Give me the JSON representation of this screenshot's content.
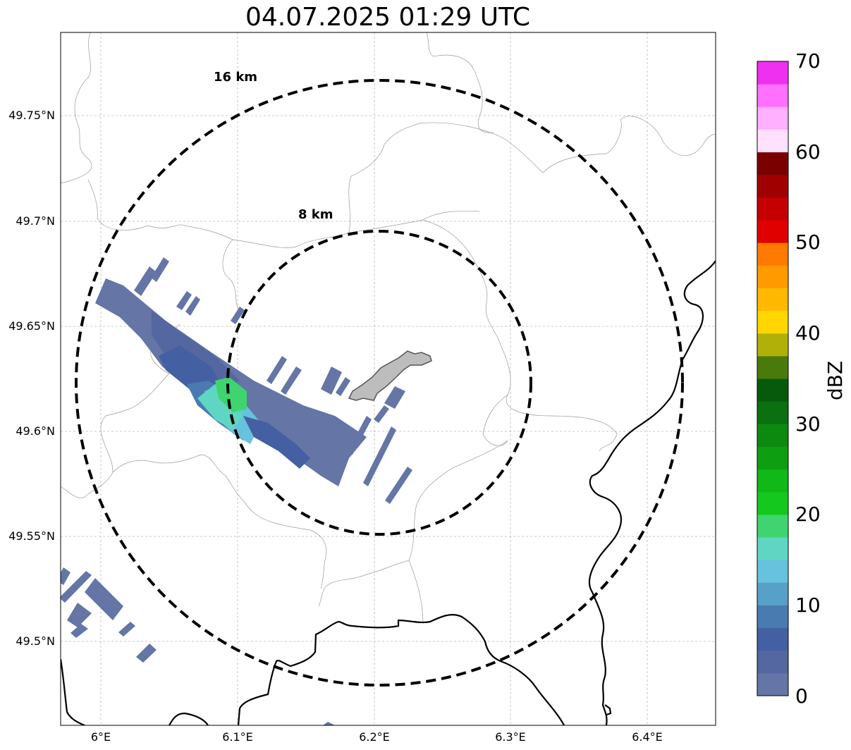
{
  "title": "04.07.2025 01:29 UTC",
  "map": {
    "radar_site_label_rings": [
      {
        "label": "16 km",
        "radius_km": 16
      },
      {
        "label": "8 km",
        "radius_km": 8
      }
    ],
    "lat_ticks": [
      "49.75°N",
      "49.7°N",
      "49.65°N",
      "49.6°N",
      "49.55°N",
      "49.5°N"
    ],
    "lon_ticks": [
      "6°E",
      "6.1°E",
      "6.2°E",
      "6.3°E",
      "6.4°E"
    ],
    "extent": {
      "lon_min": 5.97,
      "lon_max": 6.45,
      "lat_min": 49.46,
      "lat_max": 49.79
    },
    "ring_center": {
      "lon": 6.203,
      "lat": 49.623
    },
    "gridlines": true
  },
  "colorbar": {
    "unit": "dBZ",
    "min": 0,
    "max": 70,
    "tick_labels": [
      "0",
      "10",
      "20",
      "30",
      "40",
      "50",
      "60",
      "70"
    ],
    "colors": [
      "#6475a6",
      "#5567a0",
      "#4460a2",
      "#4a7bb0",
      "#57a0c8",
      "#66c2dd",
      "#5fd6c4",
      "#3fd470",
      "#14c81e",
      "#10b818",
      "#0d9e12",
      "#0c8a10",
      "#0a7010",
      "#075a0c",
      "#4a7a0a",
      "#b0b008",
      "#ffd600",
      "#ffb800",
      "#ff9a00",
      "#ff7a00",
      "#e00000",
      "#c40000",
      "#a00000",
      "#7a0000",
      "#ffe0ff",
      "#ffb0ff",
      "#ff70ff",
      "#f030f0"
    ]
  },
  "colors": {
    "ring": "#000000",
    "border_line": "#000000",
    "admin_line": "#9a9a9a",
    "city_fill": "#bdbdbd",
    "echo_main": "#6475a6"
  }
}
